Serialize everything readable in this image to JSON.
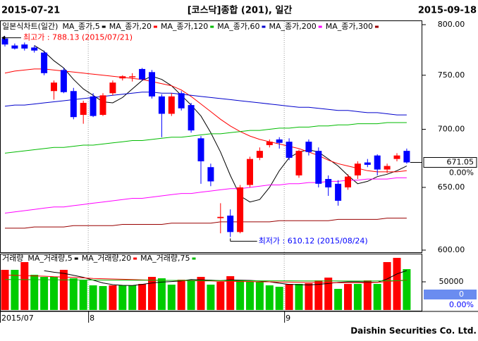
{
  "header": {
    "start": "2015-07-21",
    "title": "[코스닥]종합 (201), 일간",
    "end": "2015-09-18"
  },
  "footer": "Daishin Securities Co. Ltd.",
  "chart_data": [
    {
      "type": "candlestick",
      "title": "일본식차트(일간)",
      "log": true,
      "ylim": [
        600,
        800
      ],
      "yticks": [
        {
          "value": 800,
          "label": "800.00"
        },
        {
          "value": 750,
          "label": "750.00"
        },
        {
          "value": 700,
          "label": "700.00"
        },
        {
          "value": 650,
          "label": "650.00"
        },
        {
          "value": 600,
          "label": "600.00"
        }
      ],
      "categories": [
        "2015/07",
        null,
        null,
        null,
        null,
        null,
        null,
        null,
        null,
        "8",
        null,
        null,
        null,
        null,
        null,
        null,
        null,
        null,
        null,
        null,
        null,
        null,
        null,
        null,
        null,
        null,
        null,
        null,
        null,
        "9",
        null,
        null,
        null,
        null,
        null,
        null,
        null,
        null,
        null,
        null,
        null,
        null
      ],
      "open": [
        786,
        779,
        780,
        777,
        772,
        735,
        755,
        735,
        713,
        730,
        713,
        733,
        747,
        748,
        756,
        753,
        730,
        714,
        733,
        722,
        692,
        667,
        625,
        627,
        614,
        652,
        675,
        686,
        691,
        689,
        660,
        689,
        681,
        657,
        653,
        650,
        660,
        671,
        677,
        665,
        674,
        681
      ],
      "high": [
        788.13,
        781,
        782,
        779,
        774,
        745,
        757,
        738,
        726,
        733,
        733,
        745,
        750,
        752,
        757,
        755,
        732,
        733,
        735,
        724,
        694,
        670,
        637,
        632,
        652,
        676,
        684,
        691,
        693,
        692,
        682,
        691,
        684,
        660,
        656,
        661,
        672,
        674,
        678,
        670,
        679,
        683
      ],
      "low": [
        778,
        775,
        774,
        772,
        750,
        727,
        733,
        709,
        705,
        711,
        712,
        731,
        745,
        744,
        745,
        728,
        693,
        712,
        717,
        697,
        653,
        651,
        613,
        610.12,
        613,
        650,
        673,
        684,
        683,
        673,
        658,
        677,
        650,
        643,
        635,
        648,
        657,
        667,
        660,
        662,
        672,
        670
      ],
      "close": [
        780,
        776,
        776,
        774,
        752,
        743,
        734,
        711,
        724,
        712,
        731,
        743,
        749,
        749,
        746,
        730,
        714,
        730,
        719,
        699,
        672,
        655,
        626,
        614,
        650,
        674,
        681,
        689,
        688,
        675,
        681,
        680,
        653,
        650,
        639,
        659,
        670,
        669,
        665,
        668,
        677,
        671.05
      ],
      "up_color": "#ff0000",
      "down_color": "#0000ff",
      "series": [
        {
          "name": "MA_종가,5",
          "color": "#000000",
          "values": [
            null,
            null,
            null,
            779,
            773,
            764,
            757,
            746,
            737,
            731,
            725,
            724,
            729,
            737,
            745,
            749,
            746,
            740,
            731,
            722,
            712,
            697,
            680,
            660,
            643,
            638,
            640,
            650,
            664,
            675,
            680,
            682,
            680,
            674,
            668,
            660,
            653,
            655,
            659,
            661,
            664,
            668
          ]
        },
        {
          "name": "MA_종가,20",
          "color": "#ff0000",
          "values": [
            752,
            754,
            755,
            756,
            756,
            755,
            754,
            753,
            752,
            751,
            750,
            749,
            748,
            747,
            746,
            744,
            742,
            740,
            736,
            730,
            723,
            716,
            709,
            703,
            698,
            694,
            691,
            689,
            687,
            685,
            683,
            680,
            677,
            673,
            670,
            668,
            666,
            664,
            663,
            663,
            663,
            664
          ]
        },
        {
          "name": "MA_종가,120",
          "color": "#00bb00",
          "values": [
            679,
            680,
            681,
            682,
            683,
            684,
            684,
            685,
            686,
            686,
            687,
            688,
            689,
            690,
            690,
            691,
            692,
            693,
            693,
            694,
            695,
            696,
            696,
            697,
            698,
            699,
            699,
            700,
            701,
            701,
            702,
            702,
            703,
            703,
            704,
            704,
            705,
            705,
            705,
            706,
            706,
            706
          ]
        },
        {
          "name": "MA_종가,60",
          "color": "#0000cc",
          "values": [
            721,
            722,
            722,
            723,
            724,
            725,
            726,
            727,
            728,
            729,
            730,
            731,
            732,
            733,
            734,
            734,
            733,
            733,
            732,
            731,
            730,
            729,
            728,
            727,
            726,
            725,
            724,
            723,
            722,
            721,
            720,
            720,
            719,
            718,
            717,
            717,
            716,
            715,
            715,
            714,
            713,
            713
          ]
        },
        {
          "name": "MA_종가,200",
          "color": "#ff00ff",
          "values": [
            629,
            630,
            631,
            632,
            633,
            634,
            634,
            635,
            636,
            637,
            638,
            639,
            640,
            641,
            641,
            642,
            643,
            644,
            645,
            645,
            646,
            647,
            648,
            649,
            649,
            650,
            651,
            652,
            652,
            653,
            653,
            654,
            654,
            655,
            655,
            656,
            656,
            657,
            657,
            657,
            658,
            658
          ]
        },
        {
          "name": "MA_종가,300",
          "color": "#990000",
          "values": [
            617,
            617,
            617,
            618,
            618,
            618,
            618,
            619,
            619,
            619,
            619,
            619,
            620,
            620,
            620,
            620,
            620,
            621,
            621,
            621,
            621,
            621,
            622,
            622,
            622,
            622,
            622,
            622,
            623,
            623,
            623,
            623,
            623,
            623,
            624,
            624,
            624,
            624,
            624,
            625,
            625,
            625
          ]
        }
      ],
      "annotations": [
        {
          "text": "최고가 : 788.13 (2015/07/21)",
          "color": "#ff0000"
        },
        {
          "text": "최저가 : 610.12 (2015/08/24)",
          "color": "#0000ff"
        }
      ],
      "last_label": "671.05",
      "change_label": "0.00%"
    },
    {
      "type": "bar",
      "title": "거래량",
      "ylim": [
        0,
        97500
      ],
      "yticks": [
        50000
      ],
      "values": [
        71250,
        71250,
        85000,
        62500,
        58750,
        58750,
        71250,
        56250,
        52500,
        43750,
        42500,
        43750,
        43750,
        43750,
        46250,
        58750,
        56250,
        45000,
        53750,
        52500,
        58750,
        45000,
        50000,
        60000,
        52500,
        50000,
        50000,
        43750,
        41250,
        46250,
        46250,
        47500,
        52500,
        57500,
        37500,
        46250,
        46250,
        52500,
        46250,
        85000,
        92500,
        72500
      ],
      "colors": [
        "#ff0000",
        "#00cc00",
        "#ff0000",
        "#00cc00",
        "#00cc00",
        "#00cc00",
        "#ff0000",
        "#00cc00",
        "#00cc00",
        "#00cc00",
        "#00cc00",
        "#ff0000",
        "#00cc00",
        "#00cc00",
        "#ff0000",
        "#ff0000",
        "#00cc00",
        "#00cc00",
        "#ff0000",
        "#00cc00",
        "#ff0000",
        "#00cc00",
        "#ff0000",
        "#ff0000",
        "#00cc00",
        "#00cc00",
        "#00cc00",
        "#00cc00",
        "#00cc00",
        "#ff0000",
        "#00cc00",
        "#ff0000",
        "#ff0000",
        "#ff0000",
        "#00cc00",
        "#ff0000",
        "#00cc00",
        "#ff0000",
        "#00cc00",
        "#ff0000",
        "#ff0000",
        "#00cc00"
      ],
      "series": [
        {
          "name": "MA_거래량,5",
          "color": "#000000",
          "values": [
            null,
            null,
            null,
            null,
            69750,
            67000,
            65000,
            61500,
            58000,
            53000,
            48000,
            45000,
            43750,
            43500,
            45500,
            48000,
            49500,
            50500,
            51500,
            54000,
            53500,
            53000,
            52000,
            53500,
            53000,
            52500,
            51500,
            50000,
            47500,
            45500,
            45000,
            44500,
            45500,
            47000,
            49000,
            50000,
            50000,
            49500,
            49000,
            55000,
            64000,
            70000
          ]
        },
        {
          "name": "MA_거래량,20",
          "color": "#ff0000",
          "values": [
            62000,
            61500,
            61000,
            60500,
            60000,
            59000,
            58500,
            58000,
            57000,
            56000,
            55500,
            55000,
            54500,
            54000,
            53500,
            53000,
            52500,
            52500,
            52000,
            52000,
            51500,
            51500,
            51000,
            51000,
            50500,
            50500,
            50000,
            50000,
            49500,
            49500,
            49000,
            49000,
            49000,
            48500,
            48500,
            48500,
            48500,
            48500,
            49000,
            50500,
            52000,
            53000
          ]
        },
        {
          "name": "MA_거래량,75",
          "color": "#00bb00",
          "values": [
            54000,
            54000,
            53900,
            53800,
            53700,
            53600,
            53500,
            53400,
            53300,
            53200,
            53100,
            53000,
            53000,
            52900,
            52800,
            52700,
            52600,
            52500,
            52500,
            52400,
            52300,
            52200,
            52100,
            52000,
            52000,
            51900,
            51800,
            51800,
            51700,
            51700,
            51600,
            51600,
            51500,
            51500,
            51500,
            51400,
            51400,
            51400,
            51500,
            51700,
            52000,
            52200
          ]
        }
      ],
      "last_label": "0",
      "change_label": "0.00%"
    }
  ]
}
